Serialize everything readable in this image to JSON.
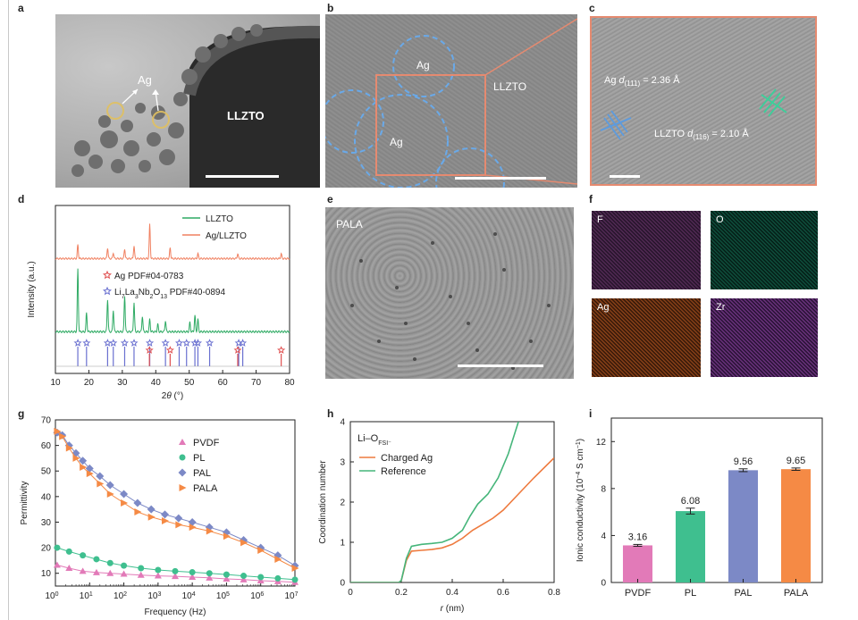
{
  "panel_labels": {
    "a": "a",
    "b": "b",
    "c": "c",
    "d": "d",
    "e": "e",
    "f": "f",
    "g": "g",
    "h": "h",
    "i": "i"
  },
  "panel_a": {
    "ag_label": "Ag",
    "llzto_label": "LLZTO"
  },
  "panel_b": {
    "ag_top": "Ag",
    "ag_bottom": "Ag",
    "llzto_label": "LLZTO"
  },
  "panel_c": {
    "ag_d_prefix": "Ag ",
    "d_sym": "d",
    "ag_d_sub": "(111)",
    "ag_d_value": " = 2.36 Å",
    "llzto_d_prefix": "LLZTO ",
    "llzto_d_sub": "(116)",
    "llzto_d_value": " = 2.10 Å"
  },
  "panel_e": {
    "label": "PALA"
  },
  "panel_f": {
    "tiles": [
      "F",
      "O",
      "Ag",
      "Zr"
    ]
  },
  "colors": {
    "llzto": "#2eaa63",
    "ag_llzto": "#f08060",
    "ag_star": "#e05050",
    "li7_star": "#6a70d0",
    "pvdf": "#e27ab8",
    "pl": "#3fbf8f",
    "pal": "#7c89c6",
    "pala": "#f58a45",
    "ref": "#45b57a",
    "charged": "#ee7a3e"
  },
  "chart_data": [
    {
      "id": "d",
      "type": "line",
      "xlabel": "2θ (°)",
      "ylabel": "Intensity (a.u.)",
      "xlim": [
        10,
        80
      ],
      "xticks": [
        10,
        20,
        30,
        40,
        50,
        60,
        70,
        80
      ],
      "legend": [
        "LLZTO",
        "Ag/LLZTO"
      ],
      "ref_legend": {
        "ag": "Ag PDF#04-0783",
        "li7_pre": "Li",
        "li7_sub1": "7",
        "li7_mid": "La",
        "li7_sub2": "3",
        "li7_mid2": "Nb",
        "li7_sub3": "2",
        "li7_mid3": "O",
        "li7_sub4": "13",
        "li7_post": " PDF#40-0894"
      },
      "peaks_llzto": [
        [
          16.7,
          1.0
        ],
        [
          19.3,
          0.3
        ],
        [
          25.6,
          0.52
        ],
        [
          27.3,
          0.35
        ],
        [
          30.7,
          0.58
        ],
        [
          33.5,
          0.47
        ],
        [
          36.0,
          0.25
        ],
        [
          38.2,
          0.2
        ],
        [
          40.6,
          0.12
        ],
        [
          42.9,
          0.18
        ],
        [
          50.2,
          0.15
        ],
        [
          51.7,
          0.26
        ],
        [
          52.6,
          0.2
        ]
      ],
      "peaks_ag": [
        [
          16.7,
          0.28
        ],
        [
          25.6,
          0.22
        ],
        [
          27.3,
          0.12
        ],
        [
          30.7,
          0.2
        ],
        [
          33.5,
          0.26
        ],
        [
          38.2,
          0.7
        ],
        [
          44.3,
          0.22
        ],
        [
          52.6,
          0.1
        ],
        [
          64.5,
          0.1
        ],
        [
          77.5,
          0.1
        ]
      ],
      "ref_li7": [
        16.7,
        19.3,
        25.6,
        27.3,
        30.7,
        33.5,
        38.2,
        42.9,
        47.0,
        49.2,
        51.7,
        52.6,
        56.1,
        64.8,
        66.0
      ],
      "ref_ag": [
        38.1,
        44.3,
        64.5,
        77.5
      ]
    },
    {
      "id": "g",
      "type": "scatter",
      "xlabel": "Frequency (Hz)",
      "ylabel": "Permittivity",
      "ylim": [
        5,
        70
      ],
      "yticks": [
        10,
        20,
        30,
        40,
        50,
        60,
        70
      ],
      "xlim_log": [
        0,
        7
      ],
      "xtick_labels": [
        "10^0",
        "10^1",
        "10^2",
        "10^3",
        "10^4",
        "10^5",
        "10^6",
        "10^7"
      ],
      "series": [
        {
          "name": "PVDF",
          "values_log": [
            [
              0.05,
              13.2
            ],
            [
              0.4,
              12
            ],
            [
              0.8,
              10.8
            ],
            [
              1.2,
              10.3
            ],
            [
              1.6,
              10
            ],
            [
              2,
              9.7
            ],
            [
              2.5,
              9.3
            ],
            [
              3,
              9
            ],
            [
              3.5,
              8.8
            ],
            [
              4,
              8.5
            ],
            [
              4.5,
              8.2
            ],
            [
              5,
              7.8
            ],
            [
              5.5,
              7.5
            ],
            [
              6,
              7.1
            ],
            [
              6.5,
              6.8
            ],
            [
              7,
              6.5
            ]
          ]
        },
        {
          "name": "PL",
          "values_log": [
            [
              0.05,
              20
            ],
            [
              0.4,
              18.5
            ],
            [
              0.8,
              17
            ],
            [
              1.2,
              15.5
            ],
            [
              1.6,
              14
            ],
            [
              2,
              13
            ],
            [
              2.5,
              12
            ],
            [
              3,
              11.3
            ],
            [
              3.5,
              10.8
            ],
            [
              4,
              10.4
            ],
            [
              4.5,
              10
            ],
            [
              5,
              9.5
            ],
            [
              5.5,
              9
            ],
            [
              6,
              8.5
            ],
            [
              6.5,
              8
            ],
            [
              7,
              7.5
            ]
          ]
        },
        {
          "name": "PAL",
          "values_log": [
            [
              0.05,
              65
            ],
            [
              0.2,
              64
            ],
            [
              0.4,
              60
            ],
            [
              0.6,
              57
            ],
            [
              0.8,
              54
            ],
            [
              1.0,
              51
            ],
            [
              1.3,
              48
            ],
            [
              1.6,
              44.5
            ],
            [
              2,
              41
            ],
            [
              2.4,
              37.5
            ],
            [
              2.8,
              35
            ],
            [
              3.2,
              33
            ],
            [
              3.6,
              31.5
            ],
            [
              4,
              30
            ],
            [
              4.5,
              28
            ],
            [
              5,
              26
            ],
            [
              5.5,
              23
            ],
            [
              6,
              20
            ],
            [
              6.5,
              17
            ],
            [
              7,
              13
            ]
          ]
        },
        {
          "name": "PALA",
          "values_log": [
            [
              0.05,
              65.5
            ],
            [
              0.2,
              63.5
            ],
            [
              0.4,
              59
            ],
            [
              0.6,
              55
            ],
            [
              0.8,
              51.5
            ],
            [
              1.0,
              49
            ],
            [
              1.3,
              45
            ],
            [
              1.6,
              41
            ],
            [
              2,
              37.5
            ],
            [
              2.4,
              34
            ],
            [
              2.8,
              32
            ],
            [
              3.2,
              30.5
            ],
            [
              3.6,
              29
            ],
            [
              4,
              28
            ],
            [
              4.5,
              26.5
            ],
            [
              5,
              24.5
            ],
            [
              5.5,
              22
            ],
            [
              6,
              19
            ],
            [
              6.5,
              15.5
            ],
            [
              7,
              12
            ]
          ]
        }
      ]
    },
    {
      "id": "h",
      "type": "line",
      "xlabel": "r (nm)",
      "ylabel": "Coordination number",
      "xlim": [
        0,
        0.8
      ],
      "ylim": [
        0,
        4
      ],
      "xticks": [
        0,
        0.2,
        0.4,
        0.6,
        0.8
      ],
      "yticks": [
        0,
        1,
        2,
        3,
        4
      ],
      "title_pre": "Li–O",
      "title_sub": "FSI⁻",
      "series": [
        {
          "name": "Charged Ag",
          "values": [
            [
              0,
              0
            ],
            [
              0.19,
              0
            ],
            [
              0.2,
              0.05
            ],
            [
              0.22,
              0.55
            ],
            [
              0.24,
              0.78
            ],
            [
              0.28,
              0.8
            ],
            [
              0.32,
              0.82
            ],
            [
              0.36,
              0.86
            ],
            [
              0.4,
              0.95
            ],
            [
              0.44,
              1.1
            ],
            [
              0.48,
              1.3
            ],
            [
              0.52,
              1.45
            ],
            [
              0.56,
              1.6
            ],
            [
              0.6,
              1.8
            ],
            [
              0.66,
              2.2
            ],
            [
              0.72,
              2.6
            ],
            [
              0.8,
              3.1
            ]
          ]
        },
        {
          "name": "Reference",
          "values": [
            [
              0,
              0
            ],
            [
              0.19,
              0
            ],
            [
              0.2,
              0.05
            ],
            [
              0.22,
              0.6
            ],
            [
              0.24,
              0.9
            ],
            [
              0.28,
              0.95
            ],
            [
              0.32,
              0.97
            ],
            [
              0.36,
              1.0
            ],
            [
              0.4,
              1.1
            ],
            [
              0.44,
              1.3
            ],
            [
              0.47,
              1.65
            ],
            [
              0.5,
              1.95
            ],
            [
              0.54,
              2.2
            ],
            [
              0.58,
              2.6
            ],
            [
              0.62,
              3.2
            ],
            [
              0.66,
              4.0
            ]
          ]
        }
      ]
    },
    {
      "id": "i",
      "type": "bar",
      "ylabel_pre": "Ionic conductivity (10",
      "ylabel_sup1": "−4",
      "ylabel_mid": " S cm",
      "ylabel_sup2": "−1",
      "ylabel_post": ")",
      "ylim": [
        0,
        14
      ],
      "yticks": [
        0,
        4,
        8,
        12
      ],
      "categories": [
        "PVDF",
        "PL",
        "PAL",
        "PALA"
      ],
      "values": [
        3.16,
        6.08,
        9.56,
        9.65
      ],
      "labels": [
        "3.16",
        "6.08",
        "9.56",
        "9.65"
      ],
      "errors": [
        0.08,
        0.25,
        0.12,
        0.1
      ]
    }
  ]
}
